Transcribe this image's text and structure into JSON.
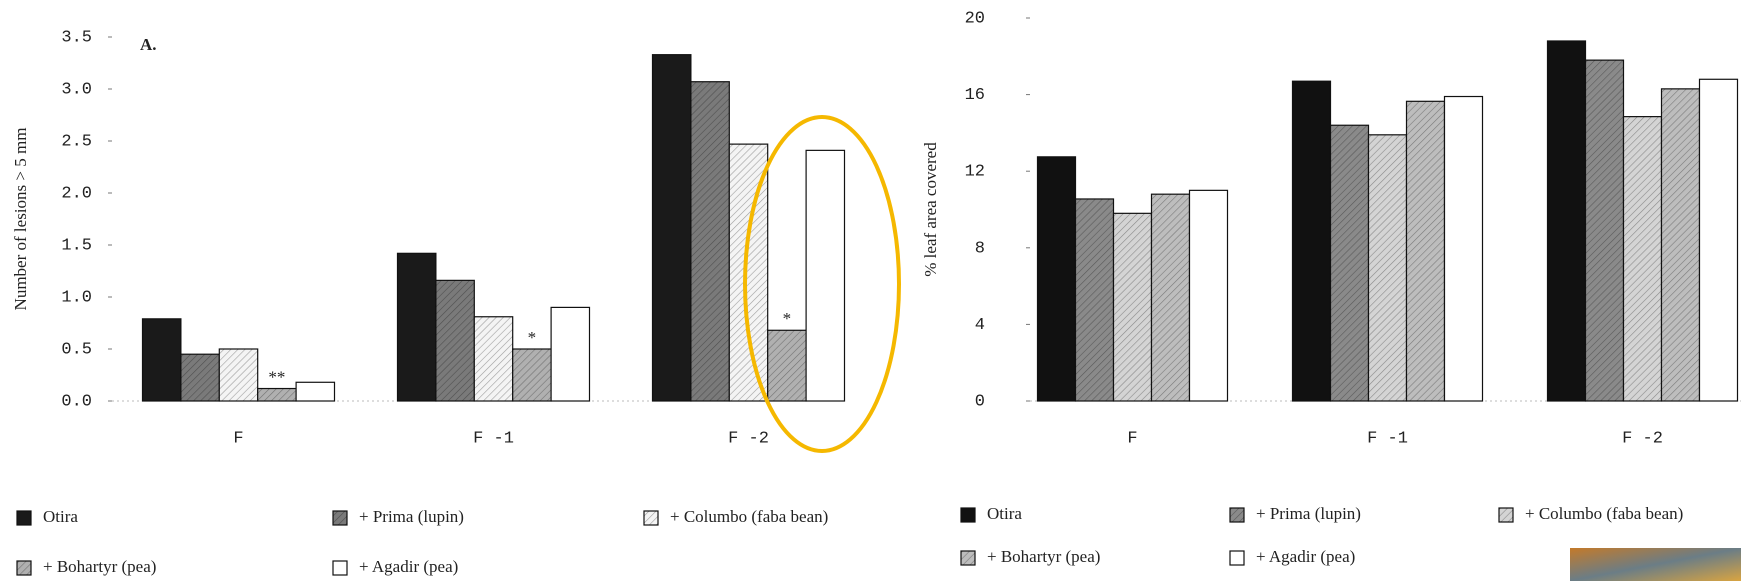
{
  "chart_data": [
    {
      "type": "bar",
      "title": "A.",
      "y_label": "Number of lesions > 5 mm",
      "categories": [
        "F",
        "F -1",
        "F -2"
      ],
      "series": [
        {
          "name": "Otira",
          "color": "#1a1a1a",
          "values": [
            0.79,
            1.42,
            3.33
          ]
        },
        {
          "name": "+ Prima (lupin)",
          "color": "#7a7a7a",
          "values": [
            0.45,
            1.16,
            3.07
          ]
        },
        {
          "name": "+ Columbo (faba bean)",
          "color": "#f4f4f4",
          "values": [
            0.5,
            0.81,
            2.47
          ]
        },
        {
          "name": "+ Bohartyr (pea)",
          "color": "#b0b0b0",
          "values": [
            0.12,
            0.5,
            0.68
          ]
        },
        {
          "name": "+ Agadir (pea)",
          "color": "#ffffff",
          "values": [
            0.18,
            0.9,
            2.41
          ]
        }
      ],
      "annotations": [
        {
          "text": "**",
          "category": "F",
          "series": "+ Bohartyr (pea)"
        },
        {
          "text": "*",
          "category": "F -1",
          "series": "+ Bohartyr (pea)"
        },
        {
          "text": "*",
          "category": "F -2",
          "series": "+ Bohartyr (pea)"
        }
      ],
      "ylim": [
        0,
        3.5
      ],
      "yticks": [
        {
          "value": 0,
          "label": "0.0"
        },
        0.5,
        {
          "value": 1,
          "label": "1.0"
        },
        1.5,
        {
          "value": 2,
          "label": "2.0"
        },
        2.5,
        {
          "value": 3,
          "label": "3.0"
        },
        3.5
      ],
      "grid": false
    },
    {
      "type": "bar",
      "y_label": "% leaf area covered",
      "categories": [
        "F",
        "F -1",
        "F -2"
      ],
      "series": [
        {
          "name": "Otira",
          "color": "#111111",
          "values": [
            12.75,
            16.7,
            18.8
          ]
        },
        {
          "name": "+ Prima (lupin)",
          "color": "#8a8a8a",
          "values": [
            10.55,
            14.4,
            17.8
          ]
        },
        {
          "name": "+ Columbo (faba bean)",
          "color": "#d4d4d4",
          "values": [
            9.8,
            13.9,
            14.85
          ]
        },
        {
          "name": "+ Bohartyr (pea)",
          "color": "#bdbdbd",
          "values": [
            10.8,
            15.65,
            16.3
          ]
        },
        {
          "name": "+ Agadir (pea)",
          "color": "#ffffff",
          "values": [
            11,
            15.9,
            16.8
          ]
        }
      ],
      "ylim": [
        0,
        20
      ],
      "yticks": [
        0,
        4,
        8,
        12,
        16,
        20
      ],
      "grid": false
    }
  ]
}
